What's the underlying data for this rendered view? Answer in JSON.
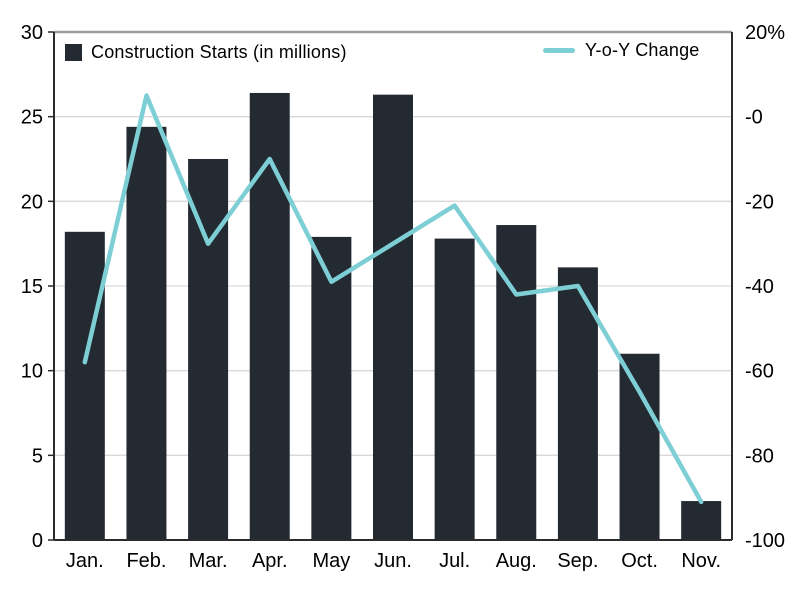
{
  "chart_data": {
    "type": "bar",
    "combo_types": [
      "bar",
      "line"
    ],
    "title": "",
    "categories": [
      "Jan.",
      "Feb.",
      "Mar.",
      "Apr.",
      "May",
      "Jun.",
      "Jul.",
      "Aug.",
      "Sep.",
      "Oct.",
      "Nov."
    ],
    "series": [
      {
        "name": "Construction Starts (in millions)",
        "type": "bar",
        "axis": "left",
        "values": [
          18.2,
          24.4,
          22.5,
          26.4,
          17.9,
          26.3,
          17.8,
          18.6,
          16.1,
          11.0,
          2.3
        ]
      },
      {
        "name": "Y-o-Y Change",
        "type": "line",
        "axis": "right",
        "values": [
          -58,
          5,
          -30,
          -10,
          -39,
          -30,
          -21,
          -42,
          -40,
          -65,
          -91
        ]
      }
    ],
    "left_axis": {
      "min": 0,
      "max": 30,
      "ticks": [
        30,
        25,
        20,
        15,
        10,
        5,
        0
      ],
      "tick_labels": [
        "30",
        "25",
        "20",
        "15",
        "10",
        "5",
        "0"
      ]
    },
    "right_axis": {
      "min": -100,
      "max": 20,
      "ticks": [
        20,
        0,
        -20,
        -40,
        -60,
        -80,
        -100
      ],
      "tick_labels": [
        "20%",
        "-0",
        "-20",
        "-40",
        "-60",
        "-80",
        "-100"
      ]
    },
    "grid": true,
    "legend_position": "top-inside"
  },
  "colors": {
    "bar": "#232a32",
    "line": "#7ecfd5",
    "grid": "#d9d9d9",
    "axis": "#2b2b2b",
    "top_border": "#9e9e9e",
    "text": "#000000",
    "background": "#ffffff"
  }
}
